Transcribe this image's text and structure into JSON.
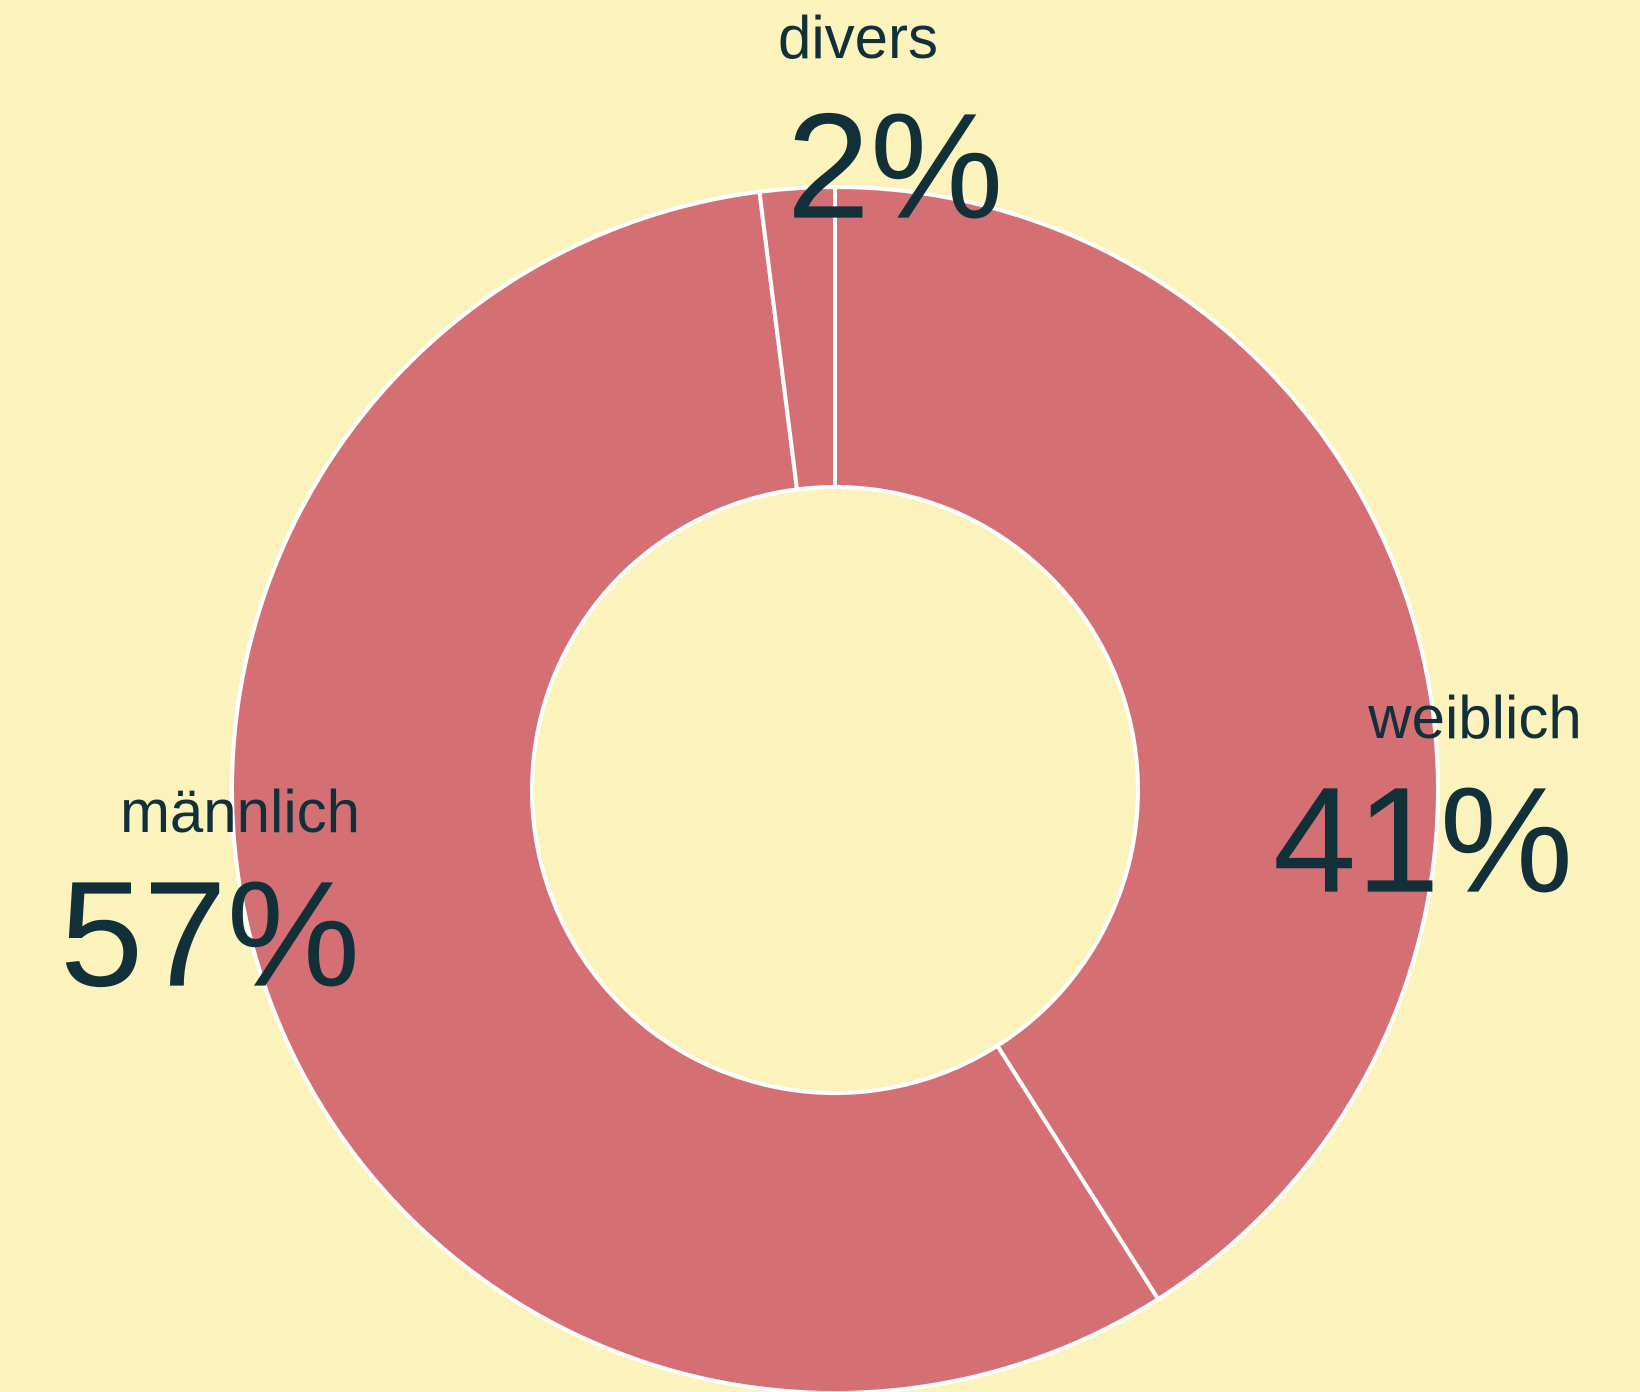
{
  "chart_data": {
    "type": "donut",
    "categories": [
      "weiblich",
      "männlich",
      "divers"
    ],
    "values": [
      41,
      57,
      2
    ],
    "value_labels": [
      "41%",
      "57%",
      "2%"
    ],
    "color": "#d47074"
  }
}
